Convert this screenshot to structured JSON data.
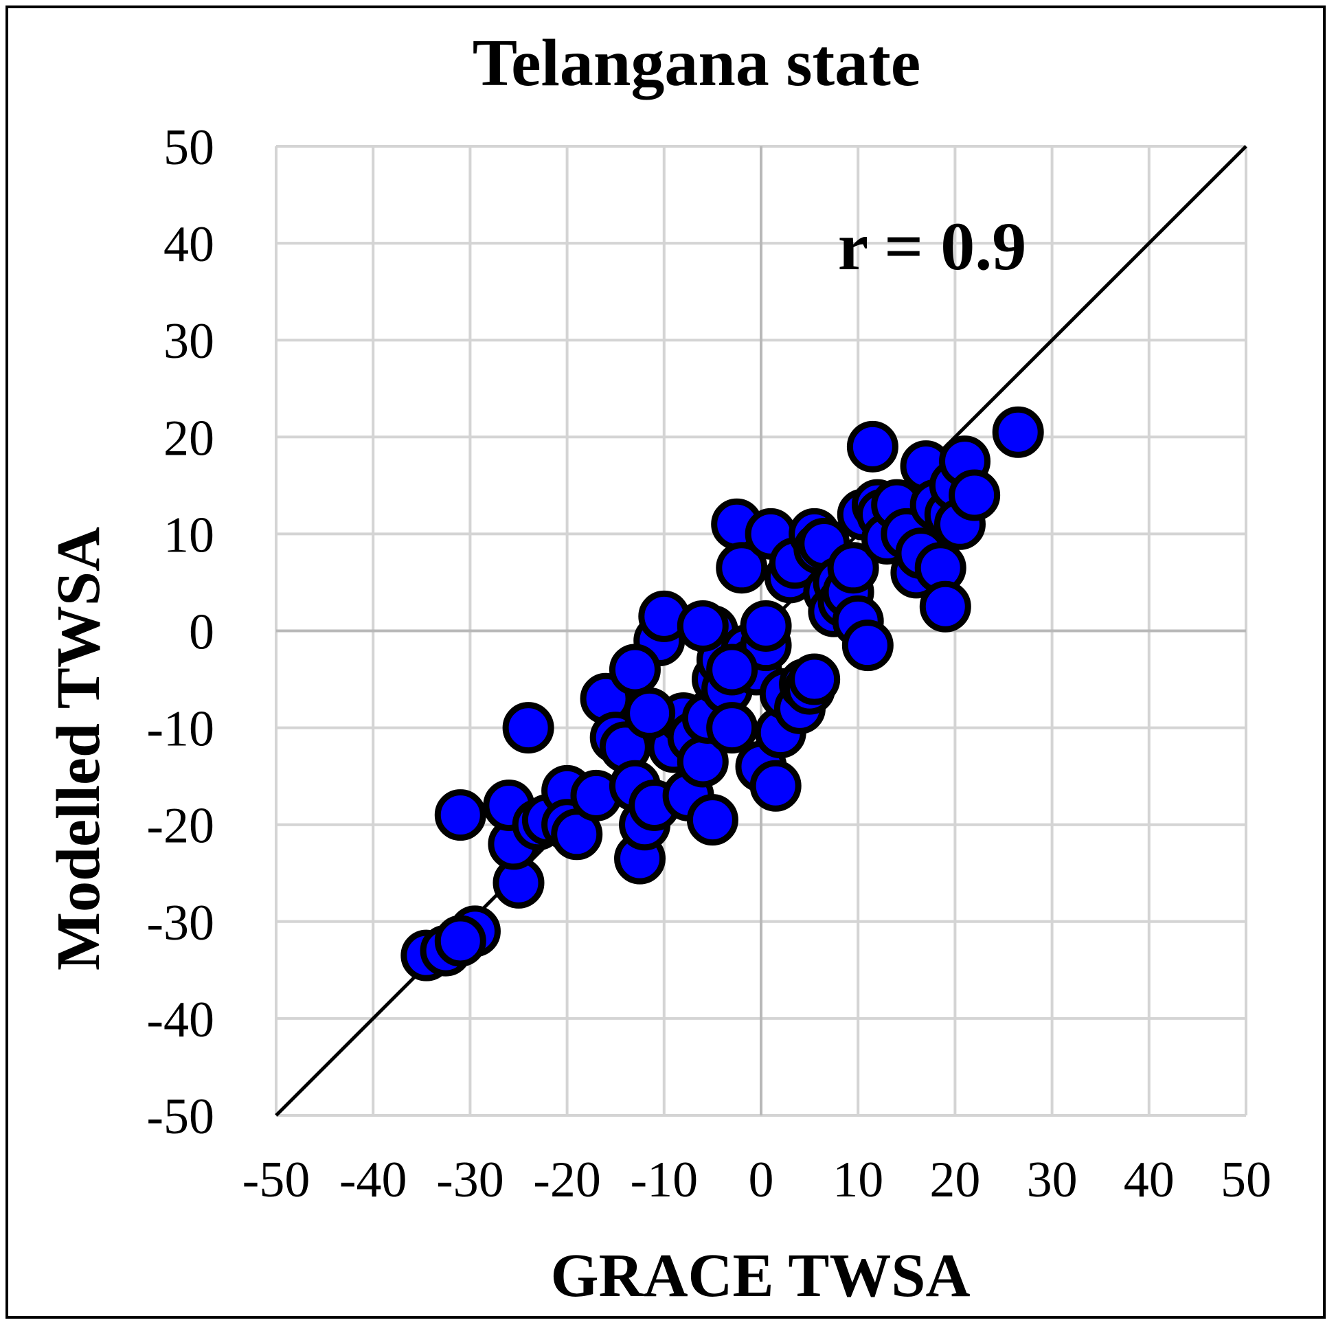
{
  "chart_data": {
    "type": "scatter",
    "title": "Telangana state",
    "xlabel": "GRACE TWSA",
    "ylabel": "Modelled TWSA",
    "annotation": "r = 0.9",
    "xlim": [
      -50,
      50
    ],
    "ylim": [
      -50,
      50
    ],
    "xticks": [
      -50,
      -40,
      -30,
      -20,
      -10,
      0,
      10,
      20,
      30,
      40,
      50
    ],
    "yticks": [
      -50,
      -40,
      -30,
      -20,
      -10,
      0,
      10,
      20,
      30,
      40,
      50
    ],
    "grid": true,
    "reference_line": {
      "label": "1:1 line",
      "x": [
        -50,
        50
      ],
      "y": [
        -50,
        50
      ]
    },
    "series": [
      {
        "name": "TWSA",
        "color": "#0000ff",
        "edge_color": "#000000",
        "x": [
          -34.5,
          -32.5,
          -29.5,
          -31,
          -25,
          -25.5,
          -26,
          -23,
          -22,
          -20,
          -20,
          -19,
          -17,
          -16,
          -15,
          -14,
          -13,
          -12.5,
          -12,
          -11,
          -10.5,
          -10,
          -9,
          -8,
          -7.5,
          -7,
          -6,
          -5.5,
          -5,
          -5,
          -4.5,
          -4,
          -3.5,
          -3,
          -2.5,
          -2,
          -1.5,
          -1,
          -0.5,
          0,
          0.5,
          1,
          1.5,
          2,
          2.5,
          3,
          3.5,
          4,
          4.5,
          5,
          5.5,
          6,
          6.5,
          7,
          7.5,
          8,
          8.5,
          9,
          9.5,
          10,
          10.5,
          11,
          11.5,
          12,
          12.5,
          13,
          14,
          15,
          16,
          16.5,
          17,
          18,
          18.5,
          19,
          19.5,
          20,
          20.5,
          21,
          22,
          26.5,
          -24,
          -31,
          -3,
          -11.5,
          -13,
          0.5,
          5.5,
          -6
        ],
        "y": [
          -33.5,
          -33,
          -31,
          -32,
          -26,
          -22,
          -18,
          -20,
          -19.5,
          -16.5,
          -20,
          -21,
          -17,
          -7,
          -11,
          -12,
          -16,
          -23.5,
          -20,
          -18,
          -1,
          1.5,
          -12,
          -9,
          -17,
          -11,
          -13.5,
          -9,
          0,
          -19.5,
          -5,
          -3,
          -6,
          -10,
          11,
          6.5,
          -2,
          -3.5,
          -4,
          -14,
          -1.5,
          10,
          -16,
          -10.5,
          -6.5,
          5.5,
          7,
          -8,
          -5.5,
          -6,
          10,
          8.5,
          9,
          4,
          2,
          5,
          3,
          4,
          6.5,
          1,
          12,
          -1.5,
          19,
          13,
          12,
          9.5,
          13,
          10,
          6,
          8,
          17,
          13,
          6.5,
          2.5,
          12,
          15,
          11,
          17.5,
          14,
          20.5,
          -10,
          -19,
          -4,
          -8.5,
          -4,
          0.5,
          -5,
          0.5
        ]
      }
    ]
  }
}
